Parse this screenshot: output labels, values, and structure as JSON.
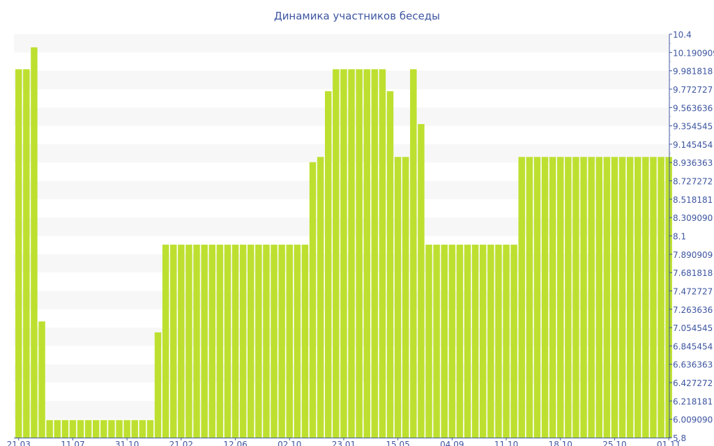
{
  "chart_data": {
    "type": "bar",
    "title": "Динамика участников беседы",
    "xlabel": "",
    "ylabel": "",
    "ylim": [
      5.8,
      10.4
    ],
    "y_axis_position": "right",
    "grid": "alternating horizontal bands",
    "bar_color": "#bde030",
    "axis_color": "#3d55a0",
    "band_color": "#f7f7f7",
    "y_tick_labels": [
      "10.4",
      "10.190909",
      "9.981818",
      "9.772727",
      "9.563636",
      "9.354545",
      "9.145454",
      "8.936363",
      "8.727272",
      "8.518181",
      "8.309090",
      "8.1",
      "7.890909",
      "7.681818",
      "7.472727",
      "7.263636",
      "7.054545",
      "6.845454",
      "6.636363",
      "6.427272",
      "6.218181",
      "6.009090",
      "5.8"
    ],
    "x_tick_labels": [
      "21.03",
      "11.07",
      "31.10",
      "21.02",
      "12.06",
      "02.10",
      "23.01",
      "15.05",
      "04.09",
      "11.10",
      "18.10",
      "25.10",
      "01.11"
    ],
    "values": [
      10,
      10,
      10.25,
      7.125,
      6,
      6,
      6,
      6,
      6,
      6,
      6,
      6,
      6,
      6,
      6,
      6,
      6,
      6,
      7,
      8,
      8,
      8,
      8,
      8,
      8,
      8,
      8,
      8,
      8,
      8,
      8,
      8,
      8,
      8,
      8,
      8,
      8,
      8,
      8.94,
      9,
      9.75,
      10,
      10,
      10,
      10,
      10,
      10,
      10,
      9.75,
      9,
      9,
      10,
      9.375,
      8,
      8,
      8,
      8,
      8,
      8,
      8,
      8,
      8,
      8,
      8,
      8,
      9,
      9,
      9,
      9,
      9,
      9,
      9,
      9,
      9,
      9,
      9,
      9,
      9,
      9,
      9,
      9,
      9,
      9,
      9,
      9
    ]
  }
}
